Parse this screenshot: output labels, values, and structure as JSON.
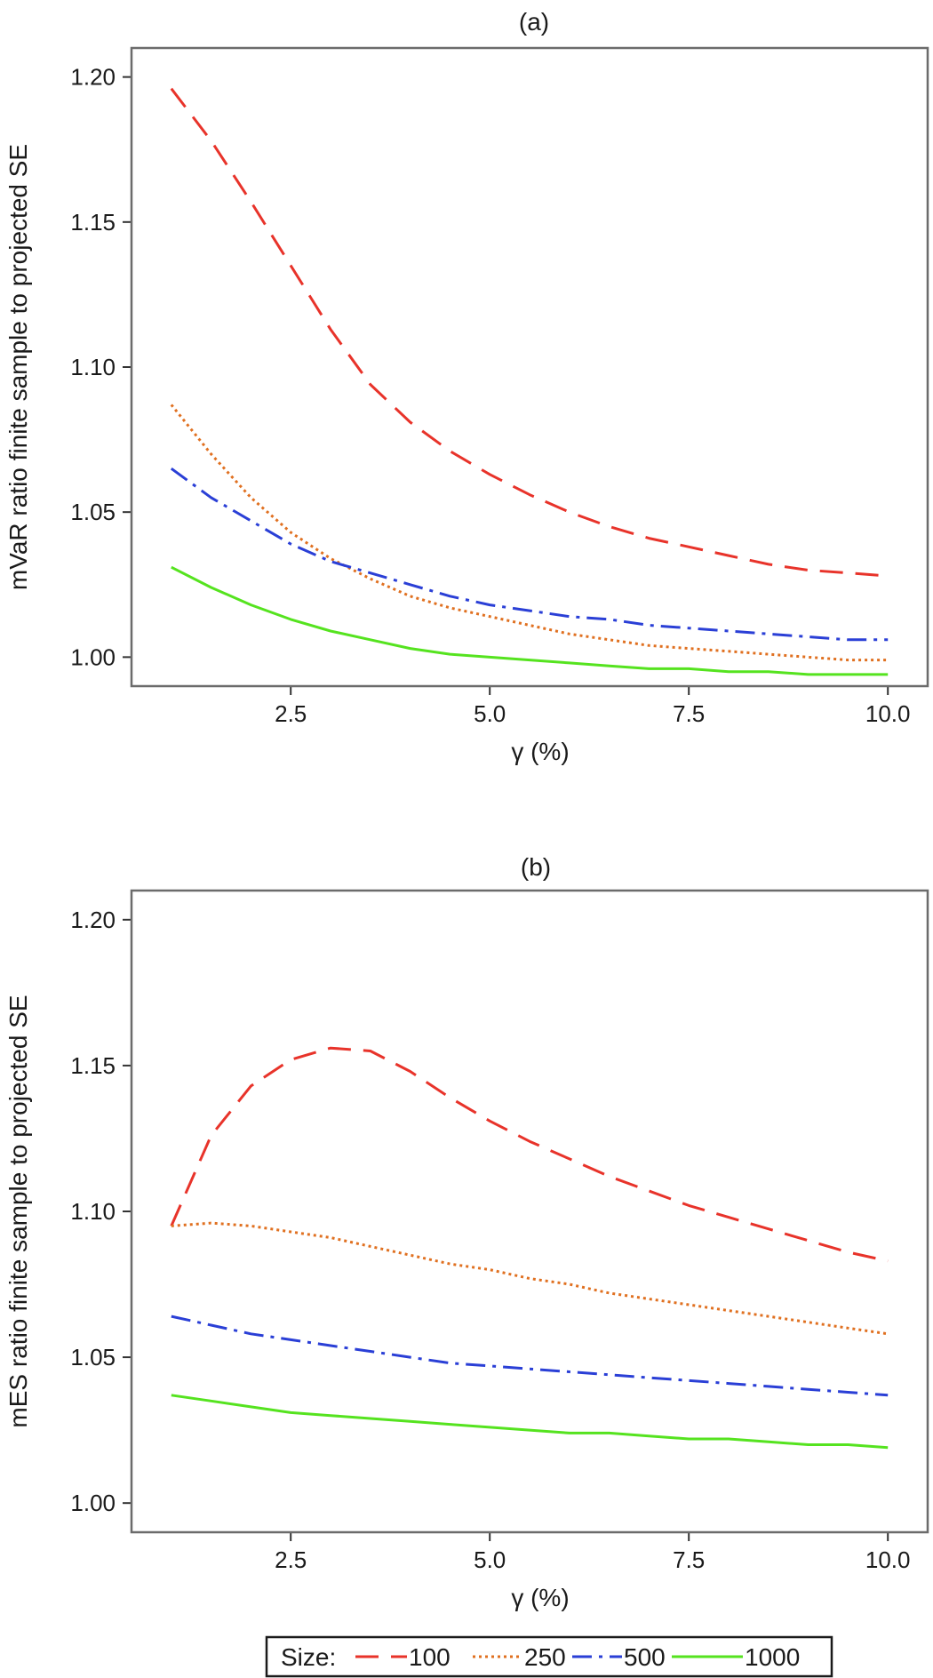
{
  "chart_data": [
    {
      "type": "line",
      "panel": "(a)",
      "title": "(a)",
      "xlabel": "γ (%)",
      "ylabel": "mVaR ratio finite sample to projected SE",
      "xlim": [
        0.5,
        10.5
      ],
      "ylim": [
        0.99,
        1.21
      ],
      "xticks": [
        "2.5",
        "5.0",
        "7.5",
        "10.0"
      ],
      "yticks": [
        "1.00",
        "1.05",
        "1.10",
        "1.15",
        "1.20"
      ],
      "x": [
        1.0,
        1.5,
        2.0,
        2.5,
        3.0,
        3.5,
        4.0,
        4.5,
        5.0,
        5.5,
        6.0,
        6.5,
        7.0,
        7.5,
        8.0,
        8.5,
        9.0,
        9.5,
        10.0
      ],
      "series": [
        {
          "name": "100",
          "color": "#e8332a",
          "dash": "long",
          "values": [
            1.196,
            1.178,
            1.157,
            1.135,
            1.113,
            1.094,
            1.081,
            1.071,
            1.063,
            1.056,
            1.05,
            1.045,
            1.041,
            1.038,
            1.035,
            1.032,
            1.03,
            1.029,
            1.028
          ]
        },
        {
          "name": "250",
          "color": "#e07020",
          "dash": "dot",
          "values": [
            1.087,
            1.07,
            1.055,
            1.043,
            1.034,
            1.027,
            1.021,
            1.017,
            1.014,
            1.011,
            1.008,
            1.006,
            1.004,
            1.003,
            1.002,
            1.001,
            1.0,
            0.999,
            0.999
          ]
        },
        {
          "name": "500",
          "color": "#2a3fd6",
          "dash": "dashdot",
          "values": [
            1.065,
            1.055,
            1.047,
            1.039,
            1.033,
            1.029,
            1.025,
            1.021,
            1.018,
            1.016,
            1.014,
            1.013,
            1.011,
            1.01,
            1.009,
            1.008,
            1.007,
            1.006,
            1.006
          ]
        },
        {
          "name": "1000",
          "color": "#55e31f",
          "dash": "solid",
          "values": [
            1.031,
            1.024,
            1.018,
            1.013,
            1.009,
            1.006,
            1.003,
            1.001,
            1.0,
            0.999,
            0.998,
            0.997,
            0.996,
            0.996,
            0.995,
            0.995,
            0.994,
            0.994,
            0.994
          ]
        }
      ]
    },
    {
      "type": "line",
      "panel": "(b)",
      "title": "(b)",
      "xlabel": "γ (%)",
      "ylabel": "mES ratio finite sample to projected SE",
      "xlim": [
        0.5,
        10.5
      ],
      "ylim": [
        0.99,
        1.21
      ],
      "xticks": [
        "2.5",
        "5.0",
        "7.5",
        "10.0"
      ],
      "yticks": [
        "1.00",
        "1.05",
        "1.10",
        "1.15",
        "1.20"
      ],
      "x": [
        1.0,
        1.5,
        2.0,
        2.5,
        3.0,
        3.5,
        4.0,
        4.5,
        5.0,
        5.5,
        6.0,
        6.5,
        7.0,
        7.5,
        8.0,
        8.5,
        9.0,
        9.5,
        10.0
      ],
      "series": [
        {
          "name": "100",
          "color": "#e8332a",
          "dash": "long",
          "values": [
            1.095,
            1.126,
            1.143,
            1.152,
            1.156,
            1.155,
            1.148,
            1.139,
            1.131,
            1.124,
            1.118,
            1.112,
            1.107,
            1.102,
            1.098,
            1.094,
            1.09,
            1.086,
            1.083
          ]
        },
        {
          "name": "250",
          "color": "#e07020",
          "dash": "dot",
          "values": [
            1.095,
            1.096,
            1.095,
            1.093,
            1.091,
            1.088,
            1.085,
            1.082,
            1.08,
            1.077,
            1.075,
            1.072,
            1.07,
            1.068,
            1.066,
            1.064,
            1.062,
            1.06,
            1.058
          ]
        },
        {
          "name": "500",
          "color": "#2a3fd6",
          "dash": "dashdot",
          "values": [
            1.064,
            1.061,
            1.058,
            1.056,
            1.054,
            1.052,
            1.05,
            1.048,
            1.047,
            1.046,
            1.045,
            1.044,
            1.043,
            1.042,
            1.041,
            1.04,
            1.039,
            1.038,
            1.037
          ]
        },
        {
          "name": "1000",
          "color": "#55e31f",
          "dash": "solid",
          "values": [
            1.037,
            1.035,
            1.033,
            1.031,
            1.03,
            1.029,
            1.028,
            1.027,
            1.026,
            1.025,
            1.024,
            1.024,
            1.023,
            1.022,
            1.022,
            1.021,
            1.02,
            1.02,
            1.019
          ]
        }
      ]
    }
  ],
  "legend": {
    "title": "Size:",
    "items": [
      "100",
      "250",
      "500",
      "1000"
    ]
  }
}
